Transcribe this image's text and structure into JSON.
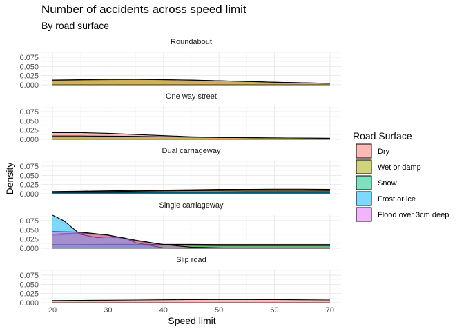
{
  "chart_data": {
    "type": "area",
    "title": "Number of accidents across speed limit",
    "subtitle": "By road surface",
    "xlabel": "Speed limit",
    "ylabel": "Density",
    "xlim": [
      18,
      72
    ],
    "ylim": [
      0,
      0.09
    ],
    "x_ticks": [
      20,
      30,
      40,
      50,
      60,
      70
    ],
    "y_ticks": [
      0.0,
      0.025,
      0.05,
      0.075
    ],
    "y_tick_labels": [
      "0.000",
      "0.025",
      "0.050",
      "0.075"
    ],
    "grid": true,
    "legend": {
      "title": "Road Surface",
      "position": "right",
      "items": [
        {
          "label": "Dry",
          "color": "#F8766D"
        },
        {
          "label": "Wet or damp",
          "color": "#A3A500"
        },
        {
          "label": "Snow",
          "color": "#00BF7D"
        },
        {
          "label": "Frost or ice",
          "color": "#00B0F6"
        },
        {
          "label": "Flood over 3cm deep",
          "color": "#E76BF3"
        }
      ]
    },
    "panels": [
      {
        "name": "Roundabout",
        "series": [
          {
            "surface": "Dry",
            "x": [
              20,
              25,
              30,
              35,
              40,
              45,
              50,
              55,
              60,
              65,
              70
            ],
            "y": [
              0.012,
              0.013,
              0.014,
              0.0145,
              0.014,
              0.0125,
              0.011,
              0.009,
              0.007,
              0.0055,
              0.004
            ]
          },
          {
            "surface": "Wet or damp",
            "x": [
              20,
              25,
              30,
              35,
              40,
              45,
              50,
              55,
              60,
              65,
              70
            ],
            "y": [
              0.013,
              0.014,
              0.015,
              0.015,
              0.014,
              0.013,
              0.011,
              0.009,
              0.007,
              0.0055,
              0.004
            ]
          }
        ]
      },
      {
        "name": "One way street",
        "series": [
          {
            "surface": "Dry",
            "x": [
              20,
              25,
              30,
              35,
              40,
              45,
              50,
              55,
              60,
              65,
              70
            ],
            "y": [
              0.018,
              0.018,
              0.016,
              0.013,
              0.01,
              0.007,
              0.0055,
              0.0045,
              0.004,
              0.0035,
              0.003
            ]
          },
          {
            "surface": "Wet or damp",
            "x": [
              20,
              25,
              30,
              35,
              40,
              45,
              50,
              55,
              60,
              65,
              70
            ],
            "y": [
              0.009,
              0.009,
              0.0085,
              0.008,
              0.007,
              0.006,
              0.005,
              0.0045,
              0.004,
              0.0035,
              0.003
            ]
          }
        ]
      },
      {
        "name": "Dual carriageway",
        "series": [
          {
            "surface": "Dry",
            "x": [
              20,
              25,
              30,
              35,
              40,
              45,
              50,
              55,
              60,
              65,
              70
            ],
            "y": [
              0.006,
              0.007,
              0.008,
              0.009,
              0.01,
              0.011,
              0.012,
              0.012,
              0.0125,
              0.0125,
              0.012
            ]
          },
          {
            "surface": "Wet or damp",
            "x": [
              20,
              25,
              30,
              35,
              40,
              45,
              50,
              55,
              60,
              65,
              70
            ],
            "y": [
              0.005,
              0.0055,
              0.006,
              0.007,
              0.008,
              0.0085,
              0.009,
              0.0095,
              0.0095,
              0.0095,
              0.009
            ]
          },
          {
            "surface": "Snow",
            "x": [
              20,
              25,
              30,
              35,
              40,
              45,
              50,
              55,
              60,
              65,
              70
            ],
            "y": [
              0.003,
              0.003,
              0.003,
              0.003,
              0.003,
              0.003,
              0.003,
              0.003,
              0.003,
              0.003,
              0.003
            ]
          },
          {
            "surface": "Frost or ice",
            "x": [
              20,
              25,
              30,
              35,
              40,
              45,
              50,
              55,
              60,
              65,
              70
            ],
            "y": [
              0.004,
              0.004,
              0.004,
              0.0045,
              0.005,
              0.005,
              0.005,
              0.0055,
              0.0055,
              0.0055,
              0.0055
            ]
          }
        ]
      },
      {
        "name": "Single carriageway",
        "series": [
          {
            "surface": "Dry",
            "x": [
              20,
              25,
              30,
              35,
              40,
              45,
              50,
              55,
              60,
              65,
              70
            ],
            "y": [
              0.035,
              0.04,
              0.035,
              0.02,
              0.01,
              0.008,
              0.007,
              0.007,
              0.007,
              0.007,
              0.007
            ]
          },
          {
            "surface": "Wet or damp",
            "x": [
              20,
              25,
              30,
              35,
              40,
              45,
              50,
              55,
              60,
              65,
              70
            ],
            "y": [
              0.038,
              0.042,
              0.036,
              0.02,
              0.01,
              0.008,
              0.007,
              0.007,
              0.007,
              0.007,
              0.007
            ]
          },
          {
            "surface": "Snow",
            "x": [
              20,
              25,
              30,
              35,
              40,
              45,
              50,
              55,
              60,
              65,
              70
            ],
            "y": [
              0.01,
              0.01,
              0.0105,
              0.0105,
              0.0105,
              0.0105,
              0.01,
              0.01,
              0.01,
              0.01,
              0.01
            ]
          },
          {
            "surface": "Frost or ice",
            "x": [
              20,
              22,
              25,
              28,
              30,
              33,
              35,
              40,
              45,
              50,
              60,
              70
            ],
            "y": [
              0.09,
              0.075,
              0.038,
              0.029,
              0.031,
              0.028,
              0.015,
              0.001,
              0.0,
              0.0,
              0.0,
              0.0
            ]
          },
          {
            "surface": "Flood over 3cm deep",
            "x": [
              20,
              25,
              30,
              35,
              40,
              45,
              50,
              55,
              60,
              65,
              70
            ],
            "y": [
              0.045,
              0.044,
              0.036,
              0.022,
              0.01,
              0.003,
              0.001,
              0.0,
              0.0,
              0.0,
              0.0
            ]
          }
        ]
      },
      {
        "name": "Slip road",
        "series": [
          {
            "surface": "Dry",
            "x": [
              20,
              25,
              30,
              35,
              40,
              45,
              50,
              55,
              60,
              65,
              70
            ],
            "y": [
              0.006,
              0.0065,
              0.007,
              0.0075,
              0.008,
              0.0085,
              0.0088,
              0.0088,
              0.0085,
              0.008,
              0.0075
            ]
          }
        ]
      }
    ]
  }
}
